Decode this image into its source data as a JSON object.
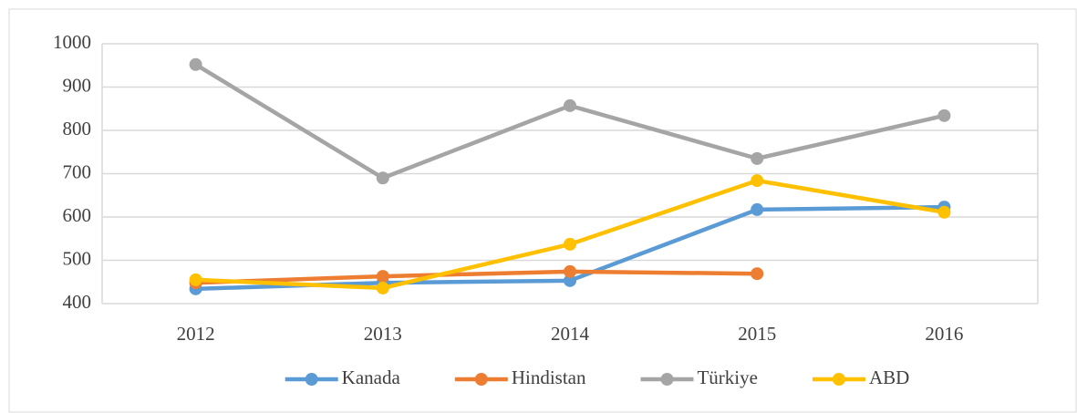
{
  "chart_data": {
    "type": "line",
    "categories": [
      "2012",
      "2013",
      "2014",
      "2015",
      "2016"
    ],
    "series": [
      {
        "name": "Kanada",
        "color": "#5b9bd5",
        "values": [
          434,
          448,
          453,
          617,
          623
        ]
      },
      {
        "name": "Hindistan",
        "color": "#ed7d31",
        "values": [
          448,
          463,
          474,
          469,
          null
        ]
      },
      {
        "name": "Türkiye",
        "color": "#a5a5a5",
        "values": [
          952,
          690,
          857,
          735,
          834
        ]
      },
      {
        "name": "ABD",
        "color": "#ffc000",
        "values": [
          455,
          436,
          537,
          684,
          611
        ]
      }
    ],
    "ylim": [
      400,
      1000
    ],
    "yticks": [
      400,
      500,
      600,
      700,
      800,
      900,
      1000
    ],
    "grid": true,
    "legend": "bottom"
  }
}
